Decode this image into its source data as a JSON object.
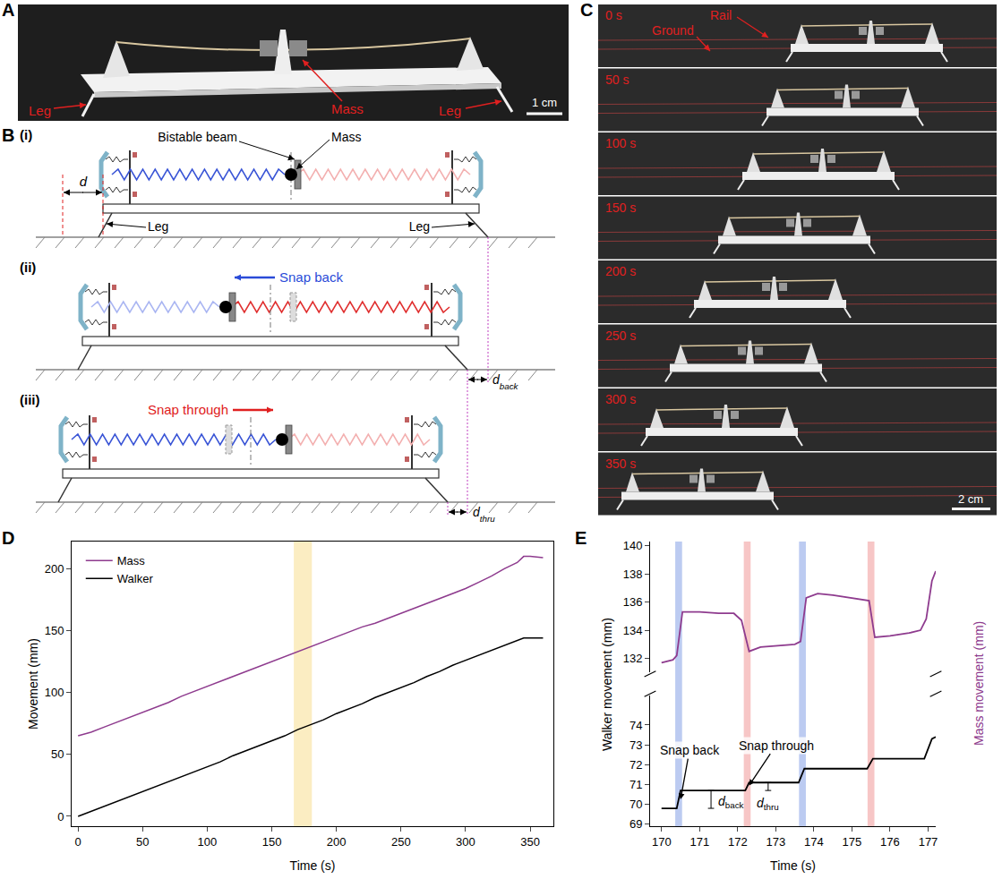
{
  "panels": {
    "A": {
      "letter": "A",
      "labels": {
        "mass": "Mass",
        "leg_left": "Leg",
        "leg_right": "Leg"
      },
      "scale_bar": "1 cm"
    },
    "B": {
      "letter": "B",
      "rows": [
        "(i)",
        "(ii)",
        "(iii)"
      ],
      "labels": {
        "beam": "Bistable beam",
        "mass": "Mass",
        "d": "d",
        "leg_left": "Leg",
        "leg_right": "Leg",
        "snap_back": "Snap back",
        "snap_through": "Snap through",
        "d_back": {
          "symbol": "d",
          "subscript": "back"
        },
        "d_thru": {
          "symbol": "d",
          "subscript": "thru"
        }
      }
    },
    "C": {
      "letter": "C",
      "frames": [
        "0 s",
        "50 s",
        "100 s",
        "150 s",
        "200 s",
        "250 s",
        "300 s",
        "350 s"
      ],
      "labels": {
        "ground": "Ground",
        "rail": "Rail"
      },
      "scale_bar": "2 cm"
    }
  },
  "chart_data": [
    {
      "panel": "D",
      "type": "line",
      "x_label": "Time (s)",
      "y_label": "Movement (mm)",
      "xlim": [
        -5,
        368
      ],
      "xticks": [
        0,
        50,
        100,
        150,
        200,
        250,
        300,
        350
      ],
      "ylim": [
        -8,
        222
      ],
      "yticks": [
        0,
        50,
        100,
        150,
        200
      ],
      "grid": false,
      "legend": "upper left",
      "highlight_x": [
        167,
        181
      ],
      "x": [
        0,
        10,
        20,
        30,
        40,
        50,
        60,
        70,
        80,
        90,
        100,
        110,
        120,
        130,
        140,
        150,
        160,
        170,
        180,
        190,
        200,
        210,
        220,
        230,
        240,
        250,
        260,
        270,
        280,
        290,
        300,
        310,
        320,
        330,
        340,
        345,
        350,
        360
      ],
      "series": [
        {
          "name": "Mass",
          "color": "#8e3b8e",
          "values": [
            65,
            68,
            72,
            76,
            80,
            84,
            88,
            92,
            97,
            101,
            105,
            109,
            113,
            117,
            121,
            125,
            129,
            133,
            137,
            141,
            145,
            149,
            153,
            156,
            160,
            164,
            168,
            172,
            176,
            180,
            184,
            189,
            194,
            200,
            205,
            210,
            210,
            209
          ]
        },
        {
          "name": "Walker",
          "color": "#000000",
          "values": [
            0,
            4,
            8,
            12,
            16,
            20,
            24,
            28,
            32,
            36,
            40,
            44,
            49,
            53,
            57,
            61,
            65,
            70,
            74,
            78,
            83,
            87,
            91,
            96,
            100,
            104,
            108,
            113,
            117,
            122,
            126,
            130,
            134,
            138,
            142,
            144,
            144,
            144
          ]
        }
      ]
    },
    {
      "panel": "E",
      "type": "line",
      "x_label": "Time (s)",
      "y_label": "Walker movement (mm)",
      "y2_label": "Mass movement (mm)",
      "xlim": [
        169.7,
        177.2
      ],
      "xticks": [
        170,
        171,
        172,
        173,
        174,
        175,
        176,
        177
      ],
      "ylim": [
        68.9,
        75.5
      ],
      "yticks": [
        69,
        70,
        71,
        72,
        73,
        74
      ],
      "y2lim": [
        131,
        140.3
      ],
      "y2ticks": [
        132,
        134,
        136,
        138,
        140
      ],
      "grid": false,
      "series": [
        {
          "name": "Walker",
          "color": "#000000",
          "x": [
            170,
            170.4,
            170.5,
            172.2,
            172.3,
            173.6,
            173.75,
            175.4,
            175.55,
            176.9,
            177.1,
            177.2
          ],
          "values": [
            69.8,
            69.8,
            70.7,
            70.7,
            71.1,
            71.1,
            71.8,
            71.8,
            72.3,
            72.3,
            73.3,
            73.4
          ]
        },
        {
          "name": "Mass",
          "color": "#8e3b8e",
          "axis": "y2",
          "x": [
            170,
            170.3,
            170.4,
            170.55,
            171,
            171.5,
            171.9,
            172.1,
            172.3,
            172.6,
            173.5,
            173.65,
            173.8,
            174.1,
            174.5,
            175.3,
            175.45,
            175.6,
            176,
            176.5,
            176.8,
            176.95,
            177.1,
            177.2
          ],
          "values": [
            131.7,
            131.9,
            132.2,
            135.3,
            135.3,
            135.2,
            135.2,
            134.7,
            132.5,
            132.8,
            133.0,
            133.2,
            136.3,
            136.6,
            136.5,
            136.2,
            136.1,
            133.5,
            133.6,
            133.8,
            134.0,
            134.8,
            137.5,
            138.2
          ]
        }
      ],
      "bands": [
        {
          "label": "Snap back",
          "color": "#8fa8e8",
          "x": [
            170.45,
            173.7
          ],
          "arrow_to": {
            "x": 170.5,
            "y": 70.25
          }
        },
        {
          "label": "Snap through",
          "color": "#f2a0a0",
          "x": [
            172.25,
            175.5
          ],
          "arrow_to": {
            "x": 172.3,
            "y": 70.95
          }
        }
      ],
      "dimensions": [
        {
          "symbol": "d",
          "subscript": "back",
          "x": 171.3,
          "from": 69.8,
          "to": 70.7
        },
        {
          "symbol": "d",
          "subscript": "thru",
          "x": 172.8,
          "from": 70.7,
          "to": 71.1
        }
      ]
    }
  ]
}
